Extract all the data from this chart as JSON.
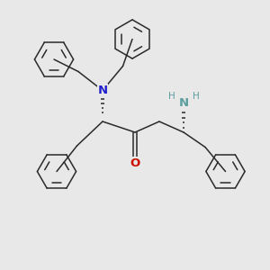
{
  "background_color": "#e8e8e8",
  "bond_color": "#2a2a2a",
  "N_color": "#2222cc",
  "O_color": "#cc1100",
  "NH_color": "#5a9ea0",
  "H_color": "#5a9ea0",
  "figsize": [
    3.0,
    3.0
  ],
  "dpi": 100,
  "xlim": [
    0,
    10
  ],
  "ylim": [
    0,
    10
  ]
}
